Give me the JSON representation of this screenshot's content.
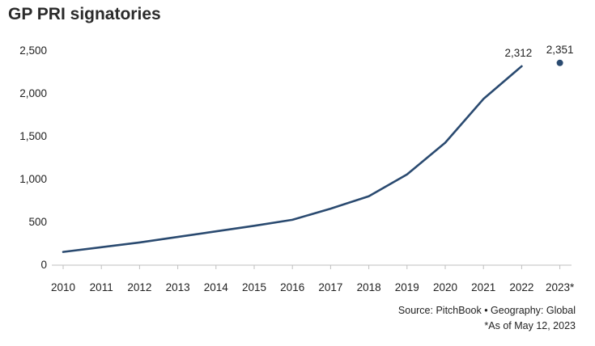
{
  "title": "GP PRI signatories",
  "source_text": "Source: PitchBook  •  Geography: Global",
  "footnote_text": "*As of May 12, 2023",
  "colors": {
    "line": "#2a4a70",
    "axis": "#bfbfbf",
    "text": "#222222"
  },
  "chart_data": {
    "type": "line",
    "title": "GP PRI signatories",
    "xlabel": "",
    "ylabel": "",
    "categories": [
      "2010",
      "2011",
      "2012",
      "2013",
      "2014",
      "2015",
      "2016",
      "2017",
      "2018",
      "2019",
      "2020",
      "2021",
      "2022",
      "2023*"
    ],
    "series": [
      {
        "values": [
          145,
          200,
          255,
          320,
          385,
          450,
          520,
          650,
          795,
          1050,
          1420,
          1930,
          2312,
          null
        ]
      }
    ],
    "highlight_point": {
      "category": "2023*",
      "value": 2351
    },
    "data_labels": [
      {
        "category": "2022",
        "label": "2,312"
      },
      {
        "category": "2023*",
        "label": "2,351"
      }
    ],
    "yticks": [
      0,
      500,
      1000,
      1500,
      2000,
      2500
    ],
    "ytick_labels": [
      "0",
      "500",
      "1,000",
      "1,500",
      "2,000",
      "2,500"
    ],
    "ylim": [
      0,
      2500
    ],
    "grid": false
  }
}
